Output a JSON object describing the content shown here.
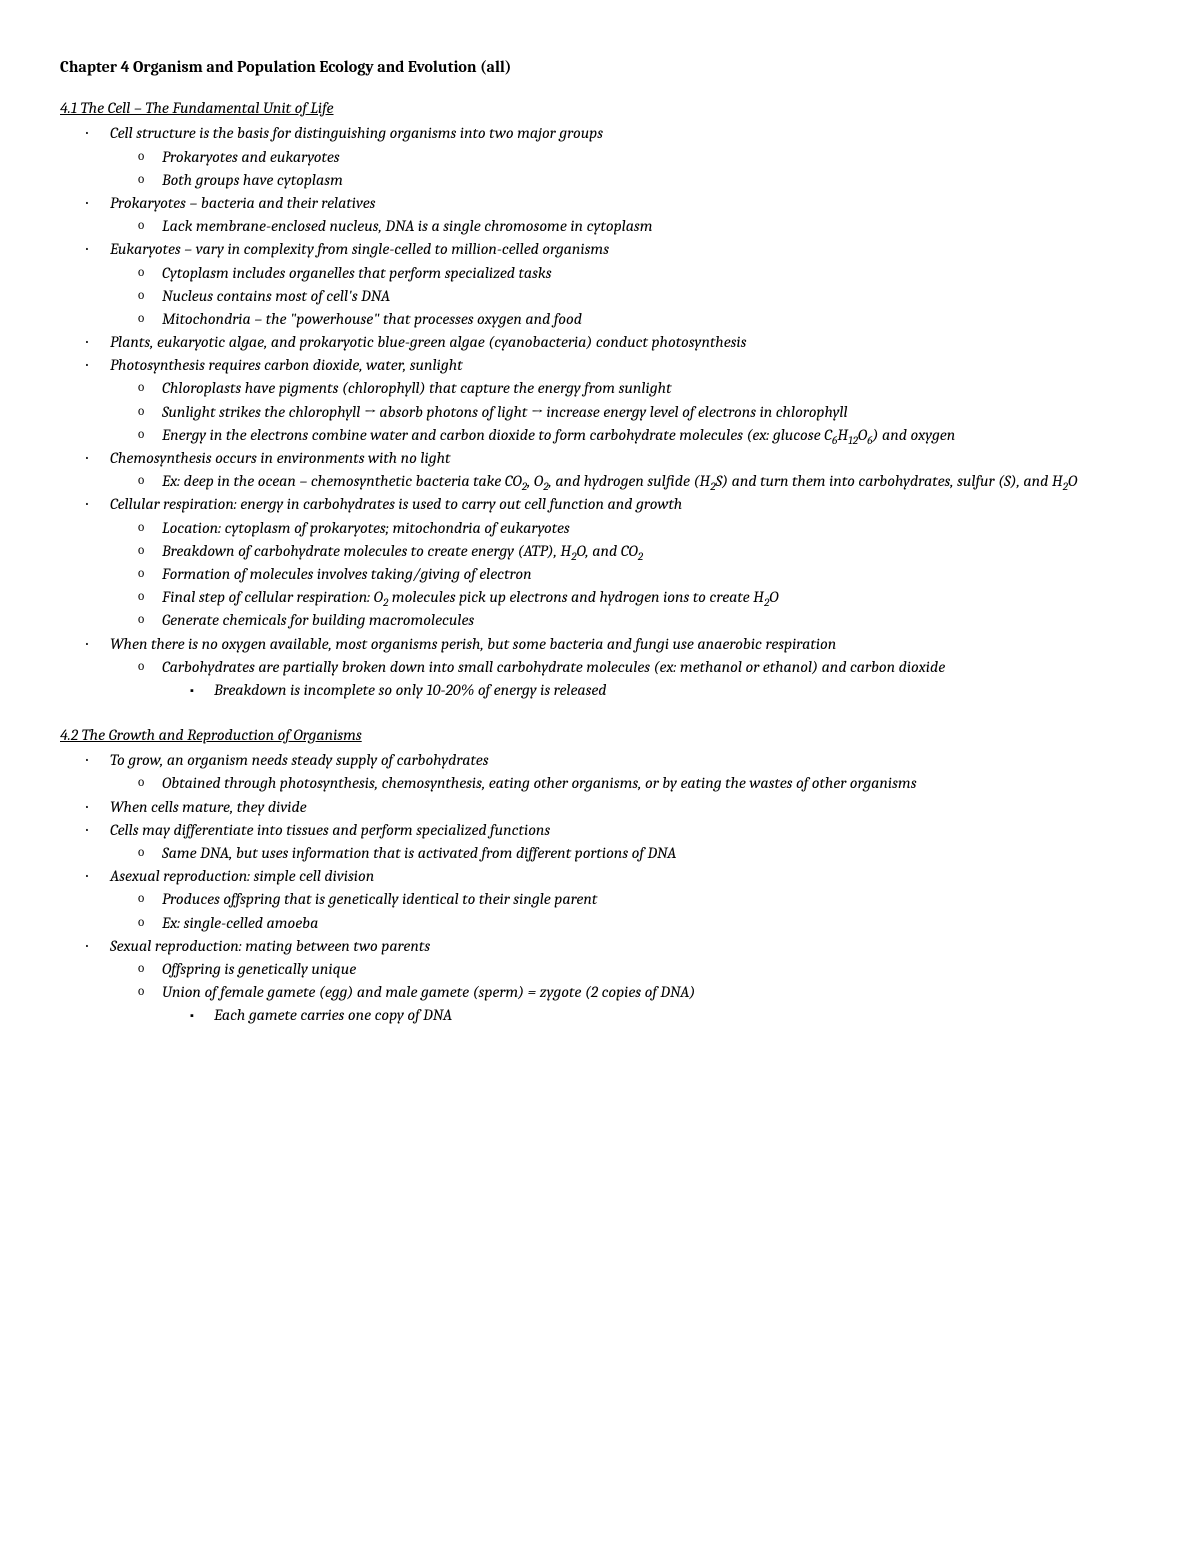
{
  "title": "Chapter 4 Organism and Population Ecology and Evolution (all)",
  "sections": [
    {
      "heading": "4.1 The Cell – The Fundamental Unit of Life",
      "items": [
        {
          "level": 1,
          "html": "Cell structure is the basis for distinguishing organisms into two major groups"
        },
        {
          "level": 2,
          "html": "Prokaryotes and eukaryotes"
        },
        {
          "level": 2,
          "html": "Both groups have cytoplasm"
        },
        {
          "level": 1,
          "html": "Prokaryotes – bacteria and their relatives"
        },
        {
          "level": 2,
          "html": "Lack membrane-enclosed nucleus, DNA is a single chromosome in cytoplasm"
        },
        {
          "level": 1,
          "html": "Eukaryotes – vary in complexity from single-celled to million-celled organisms"
        },
        {
          "level": 2,
          "html": "Cytoplasm includes organelles that perform specialized tasks"
        },
        {
          "level": 2,
          "html": "Nucleus contains most of cell's DNA"
        },
        {
          "level": 2,
          "html": "Mitochondria – the \"powerhouse\" that processes oxygen and food"
        },
        {
          "level": 1,
          "html": "Plants, eukaryotic algae, and prokaryotic blue-green algae (cyanobacteria) conduct photosynthesis"
        },
        {
          "level": 1,
          "html": "Photosynthesis requires carbon dioxide, water, sunlight"
        },
        {
          "level": 2,
          "html": "Chloroplasts have pigments (chlorophyll) that capture the energy from sunlight"
        },
        {
          "level": 2,
          "html": "Sunlight strikes the chlorophyll → absorb photons of light → increase energy level of electrons in chlorophyll"
        },
        {
          "level": 2,
          "html": "Energy in the electrons combine water and carbon dioxide to form carbohydrate molecules (ex: glucose C<span class=\"sub\">6</span>H<span class=\"sub\">12</span>O<span class=\"sub\">6</span>) and oxygen"
        },
        {
          "level": 1,
          "html": "Chemosynthesis occurs in environments with no light"
        },
        {
          "level": 2,
          "html": "Ex: deep in the ocean – chemosynthetic bacteria take CO<span class=\"sub\">2</span>, O<span class=\"sub\">2</span>, and hydrogen sulfide (H<span class=\"sub\">2</span>S) and turn them into carbohydrates, sulfur (S), and H<span class=\"sub\">2</span>O"
        },
        {
          "level": 1,
          "html": "Cellular respiration: energy in carbohydrates is used to carry out cell function and growth"
        },
        {
          "level": 2,
          "html": "Location: cytoplasm of prokaryotes; mitochondria of eukaryotes"
        },
        {
          "level": 2,
          "html": "Breakdown of carbohydrate molecules to create energy (ATP), H<span class=\"sub\">2</span>O, and CO<span class=\"sub\">2</span>"
        },
        {
          "level": 2,
          "html": "Formation of molecules involves taking/giving of electron"
        },
        {
          "level": 2,
          "html": "Final step of cellular respiration: O<span class=\"sub\">2</span> molecules pick up electrons and hydrogen ions to create H<span class=\"sub\">2</span>O"
        },
        {
          "level": 2,
          "html": "Generate chemicals for building macromolecules"
        },
        {
          "level": 1,
          "html": "When there is no oxygen available, most organisms perish, but some bacteria and fungi use anaerobic respiration"
        },
        {
          "level": 2,
          "html": "Carbohydrates are partially broken down into small carbohydrate molecules (ex: methanol or ethanol) and carbon dioxide"
        },
        {
          "level": 3,
          "html": "Breakdown is incomplete so only 10-20% of energy is released"
        }
      ]
    },
    {
      "heading": "4.2 The Growth and Reproduction of Organisms",
      "items": [
        {
          "level": 1,
          "html": "To grow, an organism needs steady supply of carbohydrates"
        },
        {
          "level": 2,
          "html": "Obtained through photosynthesis, chemosynthesis, eating other organisms, or by eating the wastes of other organisms"
        },
        {
          "level": 1,
          "html": "When cells mature, they divide"
        },
        {
          "level": 1,
          "html": "Cells may differentiate into tissues and perform specialized functions"
        },
        {
          "level": 2,
          "html": "Same DNA, but uses information that is activated from different portions of DNA"
        },
        {
          "level": 1,
          "html": "Asexual reproduction: simple cell division"
        },
        {
          "level": 2,
          "html": "Produces offspring that is genetically identical to their single parent"
        },
        {
          "level": 2,
          "html": "Ex: single-celled amoeba"
        },
        {
          "level": 1,
          "html": "Sexual reproduction: mating between two parents"
        },
        {
          "level": 2,
          "html": "Offspring is genetically unique"
        },
        {
          "level": 2,
          "html": "Union of female gamete (egg) and male gamete (sperm) = zygote (2 copies of DNA)"
        },
        {
          "level": 3,
          "html": "Each gamete carries one copy of DNA"
        }
      ]
    }
  ]
}
